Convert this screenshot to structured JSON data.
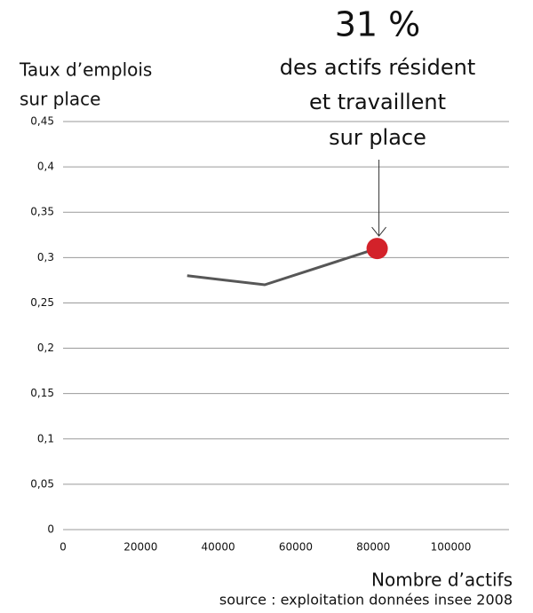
{
  "chart_data": {
    "type": "line",
    "annotation": {
      "headline": "31 %",
      "lines": [
        "des actifs résident",
        "et travaillent",
        "sur place"
      ]
    },
    "ylabel": [
      "Taux d’emplois",
      "sur place"
    ],
    "xlabel": "Nombre d’actifs",
    "source": "source : exploitation données insee 2008",
    "x": [
      32000,
      52000,
      81000
    ],
    "series": [
      {
        "color": "#575757",
        "values": [
          0.28,
          0.27,
          0.31
        ]
      }
    ],
    "highlight": {
      "index": 2,
      "color": "#d3222a"
    },
    "xlim": [
      0,
      115000
    ],
    "xticks": [
      0,
      20000,
      40000,
      60000,
      80000,
      100000
    ],
    "ylim": [
      0,
      0.45
    ],
    "yticks": [
      {
        "value": 0,
        "label": "0"
      },
      {
        "value": 0.05,
        "label": "0,05"
      },
      {
        "value": 0.1,
        "label": "0,1"
      },
      {
        "value": 0.15,
        "label": "0,15"
      },
      {
        "value": 0.2,
        "label": "0,2"
      },
      {
        "value": 0.25,
        "label": "0,25"
      },
      {
        "value": 0.3,
        "label": "0,3"
      },
      {
        "value": 0.35,
        "label": "0,35"
      },
      {
        "value": 0.4,
        "label": "0,4"
      },
      {
        "value": 0.45,
        "label": "0,45"
      }
    ],
    "grid": true
  }
}
